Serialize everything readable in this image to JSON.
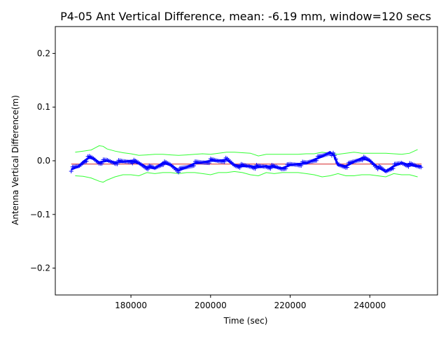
{
  "chart_data": {
    "type": "line",
    "title": "P4-05 Ant Vertical Difference, mean: -6.19 mm, window=120 secs",
    "xlabel": "Time (sec)",
    "ylabel": "Antenna Vertical Difference(m)",
    "xlim": [
      161000,
      257000
    ],
    "ylim": [
      -0.25,
      0.25
    ],
    "x_ticks": [
      180000,
      200000,
      220000,
      240000
    ],
    "x_tick_labels": [
      "180000",
      "200000",
      "220000",
      "240000"
    ],
    "y_ticks": [
      -0.2,
      -0.1,
      0.0,
      0.1,
      0.2
    ],
    "y_tick_labels": [
      "−0.2",
      "−0.1",
      "0.0",
      "0.1",
      "0.2"
    ],
    "grid": false,
    "mean_line": {
      "value": -0.00619,
      "color": "#d62728"
    },
    "colors": {
      "data": "#0000ff",
      "envelope": "#33ff33",
      "mean": "#d62728"
    },
    "series": [
      {
        "role": "vertical-difference",
        "style": "plus-markers",
        "x": [
          165000,
          167000,
          168000,
          169500,
          170500,
          172000,
          174000,
          176000,
          178000,
          180000,
          182000,
          184000,
          186000,
          188000,
          190000,
          192000,
          194000,
          196000,
          198000,
          200000,
          202000,
          204000,
          206000,
          208000,
          210000,
          212000,
          214000,
          216000,
          218000,
          220000,
          222000,
          224000,
          226000,
          228000,
          230000,
          231000,
          232000,
          234000,
          236000,
          238000,
          240000,
          242000,
          244000,
          246000,
          248000,
          250000,
          252000,
          253000
        ],
        "y": [
          -0.016,
          -0.01,
          -0.002,
          0.006,
          0.004,
          -0.003,
          0.0,
          -0.003,
          -0.002,
          0.0,
          -0.005,
          -0.012,
          -0.014,
          -0.004,
          -0.008,
          -0.018,
          -0.012,
          -0.005,
          -0.003,
          0.0,
          0.0,
          0.002,
          -0.008,
          -0.01,
          -0.01,
          -0.012,
          -0.01,
          -0.012,
          -0.014,
          -0.008,
          -0.006,
          -0.005,
          0.002,
          0.008,
          0.016,
          0.01,
          -0.008,
          -0.01,
          -0.002,
          0.005,
          0.0,
          -0.012,
          -0.02,
          -0.01,
          -0.004,
          -0.008,
          -0.01,
          -0.01
        ]
      },
      {
        "role": "upper-envelope",
        "style": "line",
        "x": [
          166000,
          168000,
          170000,
          171000,
          172000,
          173000,
          174000,
          176000,
          178000,
          180000,
          182000,
          184000,
          186000,
          188000,
          190000,
          192000,
          194000,
          196000,
          198000,
          200000,
          202000,
          204000,
          206000,
          208000,
          210000,
          212000,
          214000,
          216000,
          218000,
          220000,
          222000,
          224000,
          226000,
          228000,
          230000,
          232000,
          234000,
          236000,
          238000,
          240000,
          242000,
          244000,
          246000,
          248000,
          250000,
          252000
        ],
        "y": [
          0.016,
          0.018,
          0.02,
          0.024,
          0.028,
          0.027,
          0.022,
          0.018,
          0.015,
          0.013,
          0.01,
          0.011,
          0.012,
          0.012,
          0.011,
          0.01,
          0.011,
          0.012,
          0.013,
          0.012,
          0.014,
          0.016,
          0.016,
          0.015,
          0.014,
          0.009,
          0.012,
          0.012,
          0.012,
          0.012,
          0.012,
          0.013,
          0.013,
          0.016,
          0.014,
          0.012,
          0.014,
          0.016,
          0.014,
          0.014,
          0.014,
          0.014,
          0.013,
          0.012,
          0.014,
          0.021
        ]
      },
      {
        "role": "lower-envelope",
        "style": "line",
        "x": [
          166000,
          168000,
          170000,
          172000,
          173000,
          174000,
          176000,
          178000,
          180000,
          182000,
          184000,
          186000,
          188000,
          190000,
          192000,
          194000,
          196000,
          198000,
          200000,
          202000,
          204000,
          206000,
          208000,
          210000,
          212000,
          214000,
          216000,
          218000,
          220000,
          222000,
          224000,
          226000,
          228000,
          230000,
          232000,
          234000,
          236000,
          238000,
          240000,
          242000,
          244000,
          246000,
          248000,
          250000,
          252000
        ],
        "y": [
          -0.028,
          -0.029,
          -0.032,
          -0.038,
          -0.04,
          -0.036,
          -0.03,
          -0.026,
          -0.026,
          -0.028,
          -0.022,
          -0.024,
          -0.022,
          -0.022,
          -0.024,
          -0.022,
          -0.022,
          -0.024,
          -0.026,
          -0.022,
          -0.022,
          -0.02,
          -0.022,
          -0.026,
          -0.028,
          -0.022,
          -0.024,
          -0.022,
          -0.022,
          -0.022,
          -0.024,
          -0.026,
          -0.03,
          -0.028,
          -0.024,
          -0.028,
          -0.028,
          -0.026,
          -0.026,
          -0.028,
          -0.03,
          -0.024,
          -0.026,
          -0.026,
          -0.03
        ]
      }
    ]
  }
}
